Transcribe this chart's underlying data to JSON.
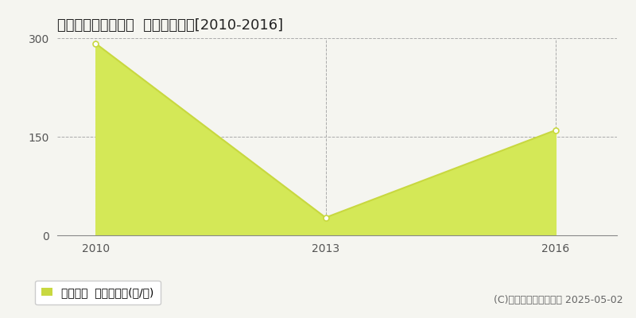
{
  "title": "夷隅郡大多喜町葛藤  林地価格推移[2010-2016]",
  "x": [
    2010,
    2013,
    2016
  ],
  "y": [
    292,
    27,
    160
  ],
  "xlim": [
    2009.5,
    2016.8
  ],
  "ylim": [
    0,
    300
  ],
  "yticks": [
    0,
    150,
    300
  ],
  "xticks": [
    2010,
    2013,
    2016
  ],
  "line_color": "#c8d840",
  "fill_color": "#d4e857",
  "marker_color": "#ffffff",
  "marker_edge_color": "#c8d840",
  "grid_color": "#aaaaaa",
  "background_color": "#f5f5f0",
  "plot_bg_color": "#f5f5f0",
  "legend_label": "林地価格  平均坪単価(円/坪)",
  "copyright": "(C)土地価格ドットコム 2025-05-02",
  "title_fontsize": 13,
  "tick_fontsize": 10,
  "legend_fontsize": 10,
  "copyright_fontsize": 9
}
